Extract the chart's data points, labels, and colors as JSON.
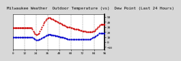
{
  "title": "Milwaukee Weather  Outdoor Temperature (vs)  Dew Point (Last 24 Hours)",
  "bg_color": "#d8d8d8",
  "plot_bg": "#ffffff",
  "temp_color": "#cc0000",
  "dew_color": "#0000cc",
  "ylim": [
    -15,
    55
  ],
  "yticks": [
    -10,
    0,
    10,
    20,
    30,
    40,
    50
  ],
  "n_points": 96,
  "temp_data": [
    28,
    28,
    28,
    28,
    28,
    28,
    28,
    28,
    28,
    28,
    28,
    28,
    28,
    28,
    28,
    28,
    28,
    28,
    28,
    28,
    25,
    22,
    19,
    16,
    15,
    15,
    16,
    18,
    21,
    25,
    29,
    33,
    37,
    40,
    43,
    45,
    47,
    48,
    48,
    47,
    46,
    45,
    44,
    43,
    42,
    41,
    40,
    39,
    38,
    37,
    36,
    35,
    34,
    33,
    32,
    31,
    30,
    30,
    29,
    29,
    28,
    28,
    27,
    27,
    26,
    26,
    25,
    25,
    24,
    24,
    23,
    23,
    22,
    22,
    21,
    21,
    20,
    20,
    20,
    20,
    20,
    20,
    20,
    21,
    22,
    23,
    25,
    27,
    29,
    31,
    33,
    35,
    35,
    35,
    35,
    35
  ],
  "dew_data": [
    10,
    10,
    10,
    10,
    10,
    10,
    10,
    10,
    10,
    10,
    10,
    10,
    10,
    10,
    10,
    10,
    10,
    10,
    10,
    10,
    9,
    8,
    7,
    5,
    4,
    4,
    4,
    5,
    6,
    7,
    8,
    9,
    10,
    11,
    12,
    13,
    14,
    15,
    15,
    15,
    14,
    14,
    13,
    13,
    12,
    12,
    12,
    11,
    11,
    10,
    10,
    9,
    9,
    8,
    8,
    7,
    7,
    6,
    6,
    6,
    5,
    5,
    5,
    5,
    5,
    5,
    5,
    5,
    5,
    5,
    5,
    5,
    5,
    5,
    5,
    5,
    5,
    5,
    5,
    5,
    6,
    7,
    8,
    9,
    10,
    11,
    12,
    14,
    15,
    17,
    18,
    18,
    18,
    18,
    18,
    18
  ],
  "vline_positions": [
    0,
    12,
    24,
    36,
    48,
    60,
    72,
    84
  ],
  "title_fontsize": 4.2,
  "tick_fontsize": 3.2,
  "last_temp": 35,
  "last_dew": 18
}
